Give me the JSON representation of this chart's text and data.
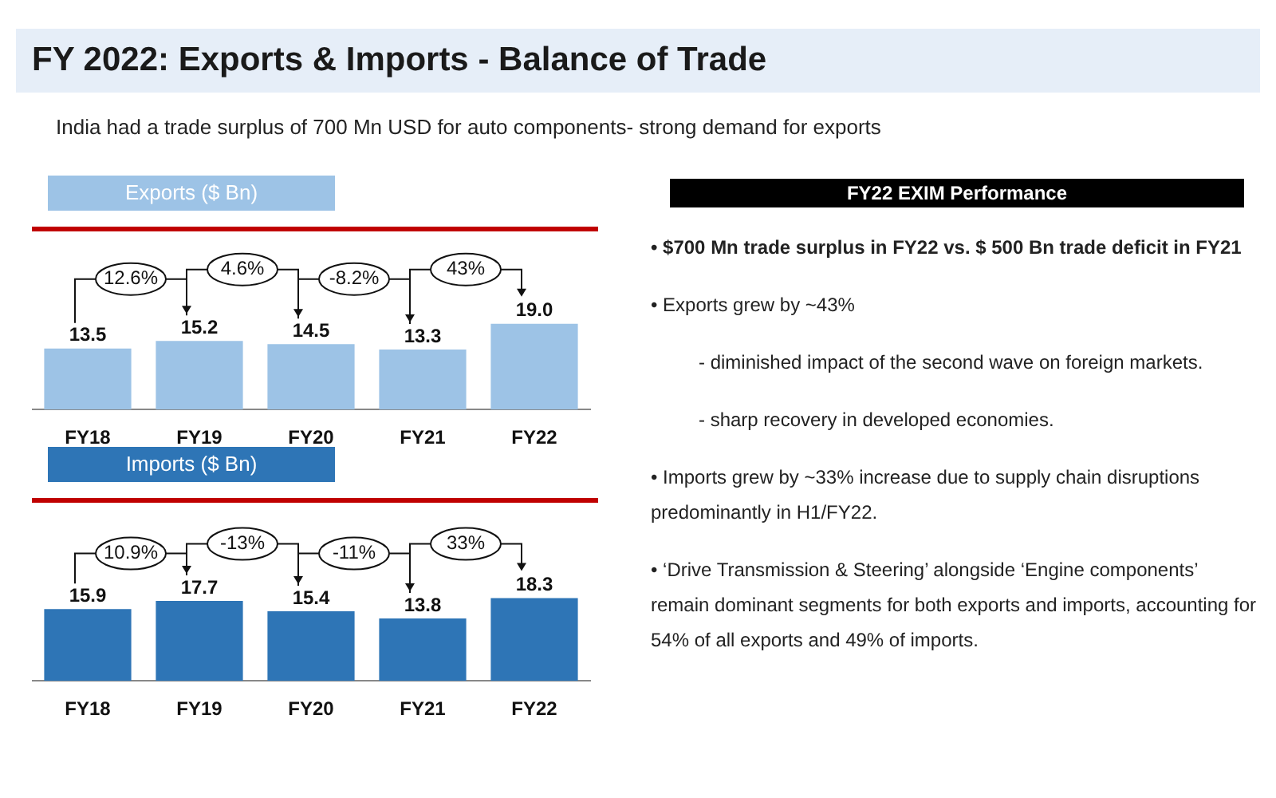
{
  "chart_data": [
    {
      "type": "other",
      "title": "FY 2022: Exports & Imports - Balance of Trade",
      "subtitle": "India had a trade surplus of 700 Mn USD for auto components- strong demand for exports"
    },
    {
      "type": "bar",
      "title": "Exports ($ Bn)",
      "categories": [
        "FY18",
        "FY19",
        "FY20",
        "FY21",
        "FY22"
      ],
      "values": [
        13.5,
        15.2,
        14.5,
        13.3,
        19.0
      ],
      "value_labels": [
        "13.5",
        "15.2",
        "14.5",
        "13.3",
        "19.0"
      ],
      "color": "#9dc3e6",
      "tick_labels": "x",
      "grid": false,
      "legend": false,
      "annotations": [
        "12.6%",
        "4.6%",
        "-8.2%",
        "43%"
      ]
    },
    {
      "type": "bar",
      "title": "Imports ($ Bn)",
      "categories": [
        "FY18",
        "FY19",
        "FY20",
        "FY21",
        "FY22"
      ],
      "values": [
        15.9,
        17.7,
        15.4,
        13.8,
        18.3
      ],
      "value_labels": [
        "15.9",
        "17.7",
        "15.4",
        "13.8",
        "18.3"
      ],
      "color": "#2e75b6",
      "tick_labels": "x",
      "grid": false,
      "legend": false,
      "annotations": [
        "10.9%",
        "-13%",
        "-11%",
        "33%"
      ]
    },
    {
      "type": "other",
      "title": "FY22 EXIM Performance",
      "annotations": [
        "•  $700 Mn trade surplus in FY22 vs. $ 500 Bn trade deficit in FY21",
        "•  Exports grew by ~43%",
        "-  diminished impact of the second wave on foreign markets.",
        "-  sharp recovery in developed economies.",
        "•  Imports grew by ~33% increase due to supply chain disruptions predominantly in H1/FY22.",
        "•  ‘Drive Transmission & Steering’ alongside ‘Engine components’ remain dominant segments for both exports and imports, accounting for 54% of all exports and 49% of imports."
      ]
    }
  ]
}
